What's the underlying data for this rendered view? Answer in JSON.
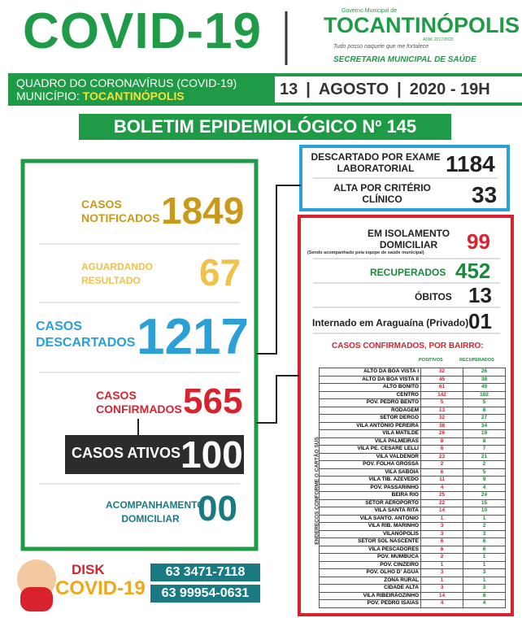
{
  "header": {
    "title": "COVID-19",
    "logo_top": "Governo Municipal de",
    "logo_name": "TOCANTINÓPOLIS",
    "logo_adm": "ADM. 2017/2020",
    "logo_motto": "Tudo posso naquele que me fortalece",
    "secretaria": "SECRETARIA MUNICIPAL DE SAÚDE"
  },
  "subheader": {
    "line1": "QUADRO DO CORONAVÍRUS (COVID-19)",
    "line2_label": "MUNICÍPIO:",
    "line2_city": "TOCANTINÓPOLIS",
    "day": "13",
    "month": "AGOSTO",
    "year_time": "2020 - 19H"
  },
  "bulletin": "BOLETIM EPIDEMIOLÓGICO Nº 145",
  "left": {
    "notificados": {
      "label": "CASOS NOTIFICADOS",
      "value": 1849
    },
    "aguardando": {
      "label": "AGUARDANDO RESULTADO",
      "value": 67
    },
    "descartados": {
      "label": "CASOS DESCARTADOS",
      "value": 1217
    },
    "confirmados": {
      "label": "CASOS CONFIRMADOS",
      "value": 565
    },
    "ativos": {
      "label": "CASOS ATIVOS",
      "value": 100
    },
    "acompanhamento": {
      "label": "ACOMPANHAMENTO DOMICILIAR",
      "value": "00"
    }
  },
  "discarded": {
    "laboratorial": {
      "label": "DESCARTADO POR EXAME LABORATORIAL",
      "value": 1184
    },
    "clinico": {
      "label": "ALTA POR CRITÉRIO CLÍNICO",
      "value": 33
    }
  },
  "confirmed": {
    "isolamento": {
      "label": "EM ISOLAMENTO DOMICILIAR",
      "note": "(Sendo acompanhado pela equipe de saúde municipal)",
      "value": 99
    },
    "recuperados": {
      "label": "RECUPERADOS",
      "value": 452
    },
    "obitos": {
      "label": "ÓBITOS",
      "value": 13
    },
    "internado": {
      "label": "Internado em Araguaína (Privado)",
      "value": "01"
    }
  },
  "table": {
    "title": "CASOS CONFIRMADOS, POR BAIRRO:",
    "side_label": "ENDEREÇOS CONFORME O CARTÃO SUS",
    "columns": [
      "POSITIVOS",
      "RECUPERADOS"
    ],
    "rows": [
      [
        "ALTO DA BOA VISTA I",
        32,
        26
      ],
      [
        "ALTO DA BOA VISTA II",
        45,
        38
      ],
      [
        "ALTO BONITO",
        61,
        49
      ],
      [
        "CENTRO",
        142,
        102
      ],
      [
        "POV. PEDRO BENTO",
        5,
        5
      ],
      [
        "RODAGEM",
        13,
        8
      ],
      [
        "SETOR DERGO",
        32,
        27
      ],
      [
        "VILA ANTÔNIO PEREIRA",
        38,
        34
      ],
      [
        "VILA MATILDE",
        26,
        19
      ],
      [
        "VILA PALMEIRAS",
        8,
        8
      ],
      [
        "VILA PE. CESARE LELLI",
        8,
        7
      ],
      [
        "VILA VALDENOR",
        23,
        21
      ],
      [
        "POV. FOLHA GROSSA",
        2,
        2
      ],
      [
        "VILA SABÓIA",
        6,
        5
      ],
      [
        "VILA TIB. AZEVEDO",
        11,
        9
      ],
      [
        "POV. PASSARINHO",
        4,
        4
      ],
      [
        "BEIRA RIO",
        25,
        24
      ],
      [
        "SETOR AEROPORTO",
        22,
        15
      ],
      [
        "VILA SANTA RITA",
        14,
        10
      ],
      [
        "VILA SANTO. ANTÔNIO",
        1,
        1
      ],
      [
        "VILA RIB. MARINHO",
        3,
        2
      ],
      [
        "VILANÓPOLIS",
        3,
        3
      ],
      [
        "SETOR SOL NASCENTE",
        6,
        6
      ],
      [
        "VILA PESCADORES",
        6,
        6
      ],
      [
        "POV. MUMBUCA",
        2,
        1
      ],
      [
        "POV. CINZEIRO",
        1,
        1
      ],
      [
        "POV. OLHO D' ÁGUA",
        3,
        3
      ],
      [
        "ZONA RURAL",
        1,
        1
      ],
      [
        "CIDADE ALTA",
        3,
        3
      ],
      [
        "VILA RIBEIRÃOZINHO",
        14,
        8
      ],
      [
        "POV. PEDRO ISAIAS",
        4,
        4
      ]
    ]
  },
  "footer": {
    "disk": "DISK",
    "covid": "COVID-19",
    "phone1": "63 3471-7118",
    "phone2": "63 99954-0631"
  }
}
